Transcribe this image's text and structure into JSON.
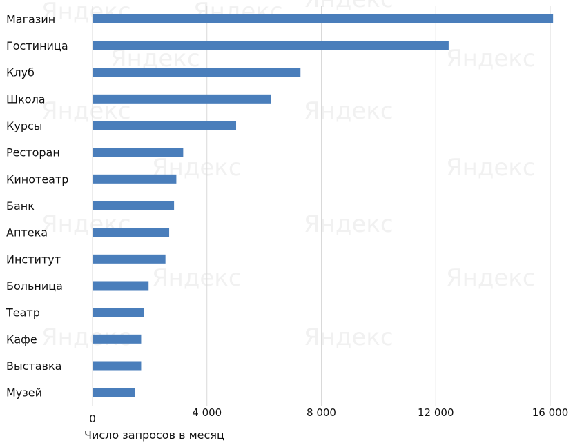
{
  "watermark": "Яндекс",
  "chart_data": {
    "type": "bar",
    "orientation": "horizontal",
    "categories": [
      "Магазин",
      "Гостиница",
      "Клуб",
      "Школа",
      "Курсы",
      "Ресторан",
      "Кинотеатр",
      "Банк",
      "Аптека",
      "Институт",
      "Больница",
      "Театр",
      "Кафе",
      "Выставка",
      "Музей"
    ],
    "values": [
      16100,
      12450,
      7270,
      6250,
      5020,
      3170,
      2930,
      2850,
      2680,
      2550,
      1960,
      1800,
      1700,
      1700,
      1480
    ],
    "xlabel": "Число запросов в месяц",
    "xlim": [
      0,
      16000
    ],
    "xticks": [
      0,
      4000,
      8000,
      12000,
      16000
    ],
    "xtick_labels": [
      "0",
      "4 000",
      "8 000",
      "12 000",
      "16 000"
    ],
    "grid": "vertical",
    "legend": "none",
    "bar_color": "#4a7ebb"
  }
}
